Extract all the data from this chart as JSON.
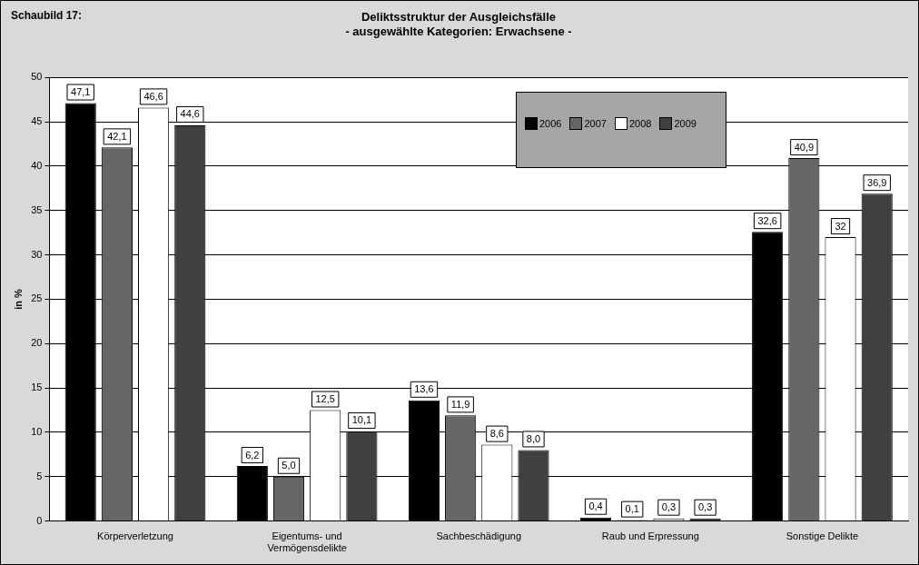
{
  "chart_data": {
    "type": "bar",
    "title": "Deliktsstruktur der Ausgleichsfälle\n- ausgewählte Kategorien: Erwachsene -",
    "ylabel": "in %",
    "annotations": [
      "Schaubild 17:"
    ],
    "categories": [
      "Körperverletzung",
      "Eigentums- und Vermögensdelikte",
      "Sachbeschädigung",
      "Raub und Erpressung",
      "Sonstige Delikte"
    ],
    "series": [
      {
        "name": "2006",
        "color": "#000000",
        "values": [
          47.1,
          6.2,
          13.6,
          0.4,
          32.6
        ],
        "value_labels": [
          "47,1",
          "6,2",
          "13,6",
          "0,4",
          "32,6"
        ]
      },
      {
        "name": "2007",
        "color": "#666666",
        "values": [
          42.1,
          5.0,
          11.9,
          0.1,
          40.9
        ],
        "value_labels": [
          "42,1",
          "5,0",
          "11,9",
          "0,1",
          "40,9"
        ]
      },
      {
        "name": "2008",
        "color": "#ffffff",
        "values": [
          46.6,
          12.5,
          8.6,
          0.3,
          32
        ],
        "value_labels": [
          "46,6",
          "12,5",
          "8,6",
          "0,3",
          "32"
        ]
      },
      {
        "name": "2009",
        "color": "#404040",
        "values": [
          44.6,
          10.1,
          8.0,
          0.3,
          36.9
        ],
        "value_labels": [
          "44,6",
          "10,1",
          "8,0",
          "0,3",
          "36,9"
        ]
      }
    ],
    "ylim": [
      0,
      50
    ],
    "yticks": [
      0,
      5,
      10,
      15,
      20,
      25,
      30,
      35,
      40,
      45,
      50
    ],
    "grid": "y",
    "legend": "top right"
  }
}
